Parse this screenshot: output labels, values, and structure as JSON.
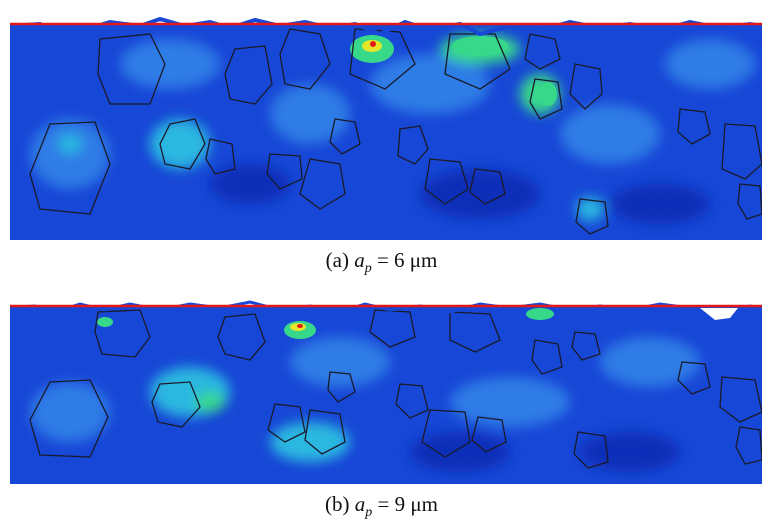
{
  "colors": {
    "background_blue": "#1747d6",
    "dark_blue": "#0c2fb8",
    "mid_blue": "#2f7be6",
    "cyan": "#2ab8e0",
    "green": "#38d88a",
    "yellow": "#e6e62a",
    "red_line": "#e31818",
    "grain_outline": "#1a1a2a"
  },
  "figure": {
    "panel_a": {
      "caption": {
        "label": "(a)",
        "var": "a",
        "sub": "p",
        "rest": " = 6 μm"
      }
    },
    "panel_b": {
      "caption": {
        "label": "(b)",
        "var": "a",
        "sub": "p",
        "rest": " = 9 μm"
      }
    }
  }
}
